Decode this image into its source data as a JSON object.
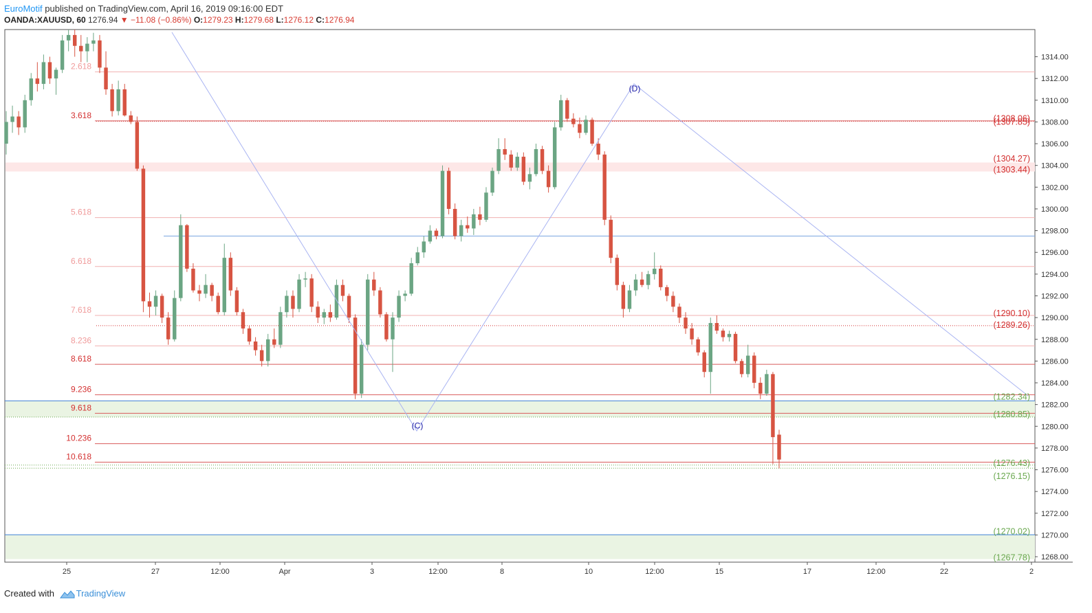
{
  "header": {
    "author": "EuroMotif",
    "published_text": " published on TradingView.com, April 16, 2019 09:16:00 EDT",
    "symbol": "OANDA:XAUUSD, 60",
    "last": "1276.94",
    "change": "▼ −11.08 (−0.86%)",
    "o_label": "O:",
    "o_value": "1279.23",
    "h_label": "H:",
    "h_value": "1279.68",
    "l_label": "L:",
    "l_value": "1276.12",
    "c_label": "C:",
    "c_value": "1276.94"
  },
  "footer": {
    "created_with": "Created with",
    "brand": "TradingView"
  },
  "colors": {
    "up": "#6ba583",
    "down": "#d75442",
    "red_level": "#d32f2f",
    "pink_level": "#f4b6b6",
    "green_level": "#6aa84f",
    "blue_level": "#3f7fd8",
    "pattern": "#a9b4f2",
    "pattern_label": "#1a1aa6"
  },
  "chart_data": {
    "type": "candlestick",
    "symbol": "OANDA:XAUUSD",
    "interval": "60",
    "y_axis": {
      "ticks": [
        "1268.00",
        "1270.00",
        "1272.00",
        "1274.00",
        "1276.00",
        "1278.00",
        "1280.00",
        "1282.00",
        "1284.00",
        "1286.00",
        "1288.00",
        "1290.00",
        "1292.00",
        "1294.00",
        "1296.00",
        "1298.00",
        "1300.00",
        "1302.00",
        "1304.00",
        "1306.00",
        "1308.00",
        "1310.00",
        "1312.00",
        "1314.00"
      ],
      "range": [
        1267.5,
        1316.5
      ],
      "position": "right"
    },
    "x_axis": {
      "ticks": [
        "25",
        "27",
        "12:00",
        "Apr",
        "3",
        "12:00",
        "8",
        "10",
        "12:00",
        "15",
        "17",
        "12:00",
        "22",
        "2"
      ]
    },
    "fib_levels": [
      {
        "label": "2.618",
        "price": 1312.6,
        "style": "pink"
      },
      {
        "label": "3.618",
        "price": 1308.1,
        "style": "red"
      },
      {
        "label": "5.618",
        "price": 1299.2,
        "style": "pink"
      },
      {
        "label": "6.618",
        "price": 1294.7,
        "style": "pink"
      },
      {
        "label": "7.618",
        "price": 1290.2,
        "style": "pink"
      },
      {
        "label": "8.236",
        "price": 1287.4,
        "style": "pink"
      },
      {
        "label": "8.618",
        "price": 1285.7,
        "style": "red"
      },
      {
        "label": "9.236",
        "price": 1282.9,
        "style": "red"
      },
      {
        "label": "9.618",
        "price": 1281.2,
        "style": "red"
      },
      {
        "label": "10.236",
        "price": 1278.4,
        "style": "red"
      },
      {
        "label": "10.618",
        "price": 1276.7,
        "style": "red"
      }
    ],
    "price_labels": [
      {
        "text": "(1308.06)",
        "price": 1308.3,
        "color": "red"
      },
      {
        "text": "(1307.85)",
        "price": 1308.0,
        "color": "red"
      },
      {
        "text": "(1304.27)",
        "price": 1304.6,
        "color": "red"
      },
      {
        "text": "(1303.44)",
        "price": 1303.6,
        "color": "red"
      },
      {
        "text": "(1290.10)",
        "price": 1290.4,
        "color": "red"
      },
      {
        "text": "(1289.26)",
        "price": 1289.3,
        "color": "red"
      },
      {
        "text": "(1282.34)",
        "price": 1282.7,
        "color": "green"
      },
      {
        "text": "(1280.85)",
        "price": 1281.1,
        "color": "green"
      },
      {
        "text": "(1276.43)",
        "price": 1276.6,
        "color": "green"
      },
      {
        "text": "(1276.15)",
        "price": 1275.4,
        "color": "green"
      },
      {
        "text": "(1270.02)",
        "price": 1270.3,
        "color": "green"
      },
      {
        "text": "(1267.78)",
        "price": 1267.9,
        "color": "green"
      }
    ],
    "zones": [
      {
        "from": 1303.44,
        "to": 1304.27,
        "color": "pink"
      },
      {
        "from": 1280.85,
        "to": 1282.34,
        "color": "green"
      },
      {
        "from": 1267.78,
        "to": 1270.02,
        "color": "green"
      }
    ],
    "pattern_labels": [
      {
        "text": "(C)",
        "price": 1279.8
      },
      {
        "text": "(D)",
        "price": 1310.8
      }
    ],
    "candles_ohlc": [
      [
        1306,
        1309,
        1305,
        1308
      ],
      [
        1308,
        1309.5,
        1307,
        1308.5
      ],
      [
        1308.5,
        1309,
        1306.8,
        1307.5
      ],
      [
        1307.5,
        1310.5,
        1307,
        1310
      ],
      [
        1310,
        1312.5,
        1309.5,
        1312
      ],
      [
        1312,
        1313.5,
        1310.8,
        1311.5
      ],
      [
        1311.5,
        1314.2,
        1311,
        1313.5
      ],
      [
        1313.5,
        1314,
        1311.5,
        1312
      ],
      [
        1312,
        1313,
        1310.5,
        1312.8
      ],
      [
        1312.8,
        1316,
        1312.5,
        1315.5
      ],
      [
        1315.5,
        1316.5,
        1314.5,
        1316
      ],
      [
        1316,
        1316.5,
        1314,
        1315
      ],
      [
        1315,
        1316,
        1313.5,
        1314.5
      ],
      [
        1314.5,
        1315.8,
        1313.5,
        1315.2
      ],
      [
        1315.2,
        1316.2,
        1314.5,
        1315.5
      ],
      [
        1315.5,
        1316,
        1312.5,
        1313
      ],
      [
        1313,
        1314.5,
        1310.5,
        1311
      ],
      [
        1311,
        1311.5,
        1308.5,
        1309
      ],
      [
        1309,
        1311.8,
        1308.6,
        1311
      ],
      [
        1311,
        1311.5,
        1308.5,
        1308.6
      ],
      [
        1308.6,
        1309,
        1307.8,
        1308
      ],
      [
        1308,
        1308.5,
        1303.5,
        1303.7
      ],
      [
        1303.7,
        1304,
        1290.5,
        1291.5
      ],
      [
        1291.5,
        1292.3,
        1290,
        1291
      ],
      [
        1291,
        1292.5,
        1290.2,
        1292
      ],
      [
        1292,
        1292.2,
        1289.5,
        1290
      ],
      [
        1290,
        1290.5,
        1287.5,
        1288
      ],
      [
        1288,
        1292.5,
        1287.8,
        1291.8
      ],
      [
        1291.8,
        1299.5,
        1291.5,
        1298.5
      ],
      [
        1298.5,
        1298.6,
        1294.2,
        1294.5
      ],
      [
        1294.5,
        1295,
        1292.3,
        1292.5
      ],
      [
        1292.5,
        1293,
        1291.5,
        1292.2
      ],
      [
        1292.2,
        1294,
        1291.8,
        1293
      ],
      [
        1293,
        1293.2,
        1291.5,
        1292
      ],
      [
        1292,
        1292.3,
        1290.3,
        1290.5
      ],
      [
        1290.5,
        1296.8,
        1290.2,
        1295.5
      ],
      [
        1295.5,
        1296,
        1292,
        1292.5
      ],
      [
        1292.5,
        1292.8,
        1290.2,
        1290.5
      ],
      [
        1290.5,
        1290.8,
        1288.5,
        1289
      ],
      [
        1289,
        1289.3,
        1287.5,
        1287.8
      ],
      [
        1287.8,
        1288.2,
        1286.5,
        1287
      ],
      [
        1287,
        1287.5,
        1285.5,
        1286
      ],
      [
        1286,
        1288.5,
        1285.5,
        1288
      ],
      [
        1288,
        1289,
        1287.2,
        1287.5
      ],
      [
        1287.5,
        1291,
        1287.2,
        1290.5
      ],
      [
        1290.5,
        1292.5,
        1290,
        1292
      ],
      [
        1292,
        1292.5,
        1290,
        1290.8
      ],
      [
        1290.8,
        1294,
        1290.5,
        1293.5
      ],
      [
        1293.5,
        1294.2,
        1292.8,
        1293.6
      ],
      [
        1293.6,
        1294,
        1290.5,
        1291
      ],
      [
        1291,
        1291.5,
        1289.5,
        1290
      ],
      [
        1290,
        1290.8,
        1289.4,
        1290.5
      ],
      [
        1290.5,
        1291.2,
        1289.6,
        1290
      ],
      [
        1290,
        1293.5,
        1289.8,
        1293
      ],
      [
        1293,
        1293.5,
        1291.5,
        1292
      ],
      [
        1292,
        1292.2,
        1289.5,
        1290
      ],
      [
        1290,
        1290.3,
        1282.5,
        1283
      ],
      [
        1283,
        1288,
        1282.6,
        1287.5
      ],
      [
        1287.5,
        1294,
        1287,
        1293.5
      ],
      [
        1293.5,
        1294.2,
        1292,
        1292.5
      ],
      [
        1292.5,
        1292.8,
        1290,
        1290.3
      ],
      [
        1290.3,
        1290.5,
        1287.8,
        1288
      ],
      [
        1288,
        1290.5,
        1285,
        1290
      ],
      [
        1290,
        1292.5,
        1289.6,
        1292
      ],
      [
        1292,
        1292.5,
        1291.5,
        1292.2
      ],
      [
        1292.2,
        1295.5,
        1292,
        1295
      ],
      [
        1295,
        1296.5,
        1294.8,
        1296
      ],
      [
        1296,
        1297.5,
        1295.5,
        1297
      ],
      [
        1297,
        1298.5,
        1296.8,
        1298
      ],
      [
        1298,
        1298.2,
        1297.2,
        1297.5
      ],
      [
        1297.5,
        1304,
        1297.3,
        1303.5
      ],
      [
        1303.5,
        1303.8,
        1299.5,
        1300
      ],
      [
        1300,
        1300.5,
        1297.2,
        1297.5
      ],
      [
        1297.5,
        1299,
        1297,
        1298.5
      ],
      [
        1298.5,
        1299.3,
        1297.8,
        1298.2
      ],
      [
        1298.2,
        1300,
        1297.6,
        1299.5
      ],
      [
        1299.5,
        1300.2,
        1298.5,
        1299
      ],
      [
        1299,
        1302,
        1298.8,
        1301.5
      ],
      [
        1301.5,
        1303.8,
        1301.2,
        1303.5
      ],
      [
        1303.5,
        1306.5,
        1303.2,
        1305.5
      ],
      [
        1305.5,
        1306.5,
        1304.5,
        1305
      ],
      [
        1305,
        1305.4,
        1303.5,
        1303.8
      ],
      [
        1303.8,
        1305.2,
        1303.5,
        1304.8
      ],
      [
        1304.8,
        1305.2,
        1302.2,
        1302.5
      ],
      [
        1302.5,
        1303.8,
        1301.8,
        1303.2
      ],
      [
        1303.2,
        1306,
        1303,
        1305.5
      ],
      [
        1305.5,
        1305.8,
        1303.2,
        1303.5
      ],
      [
        1303.5,
        1304,
        1301.5,
        1302
      ],
      [
        1302,
        1308,
        1301.8,
        1307.5
      ],
      [
        1307.5,
        1310.5,
        1307.2,
        1310
      ],
      [
        1310,
        1310.2,
        1308,
        1308.3
      ],
      [
        1308.3,
        1308.8,
        1307.5,
        1307.8
      ],
      [
        1307.8,
        1308.4,
        1306.5,
        1307
      ],
      [
        1307,
        1308.6,
        1306.8,
        1308.2
      ],
      [
        1308.2,
        1308.4,
        1305.8,
        1306
      ],
      [
        1306,
        1306.5,
        1304.5,
        1305
      ],
      [
        1305,
        1305.3,
        1298.5,
        1299
      ],
      [
        1299,
        1299.4,
        1295,
        1295.5
      ],
      [
        1295.5,
        1295.8,
        1292.5,
        1293
      ],
      [
        1293,
        1293.3,
        1290,
        1290.8
      ],
      [
        1290.8,
        1293,
        1290.5,
        1292.5
      ],
      [
        1292.5,
        1294,
        1292,
        1293.5
      ],
      [
        1293.5,
        1294.2,
        1292.8,
        1293
      ],
      [
        1293,
        1294.3,
        1292.6,
        1294
      ],
      [
        1294,
        1296,
        1293.5,
        1294.5
      ],
      [
        1294.5,
        1294.8,
        1292.5,
        1292.8
      ],
      [
        1292.8,
        1293,
        1291.5,
        1292
      ],
      [
        1292,
        1292.4,
        1290.5,
        1291
      ],
      [
        1291,
        1291.3,
        1289.5,
        1290
      ],
      [
        1290,
        1290.5,
        1288.5,
        1289
      ],
      [
        1289,
        1289.5,
        1287.5,
        1288
      ],
      [
        1288,
        1288.2,
        1286.5,
        1286.8
      ],
      [
        1286.8,
        1287,
        1284.5,
        1285
      ],
      [
        1285,
        1290,
        1283,
        1289.5
      ],
      [
        1289.5,
        1290.2,
        1288.5,
        1288.8
      ],
      [
        1288.8,
        1289,
        1287.8,
        1288.2
      ],
      [
        1288.2,
        1288.8,
        1287.8,
        1288.5
      ],
      [
        1288.5,
        1288.7,
        1285.8,
        1286
      ],
      [
        1286,
        1286.2,
        1284.5,
        1284.8
      ],
      [
        1284.8,
        1287.5,
        1284.5,
        1286.5
      ],
      [
        1286.5,
        1286.8,
        1283.5,
        1284
      ],
      [
        1284,
        1284.5,
        1282.5,
        1283
      ],
      [
        1283,
        1285.2,
        1282.8,
        1284.8
      ],
      [
        1284.8,
        1285,
        1276.5,
        1279
      ],
      [
        1279.23,
        1279.68,
        1276.12,
        1276.94
      ]
    ]
  }
}
